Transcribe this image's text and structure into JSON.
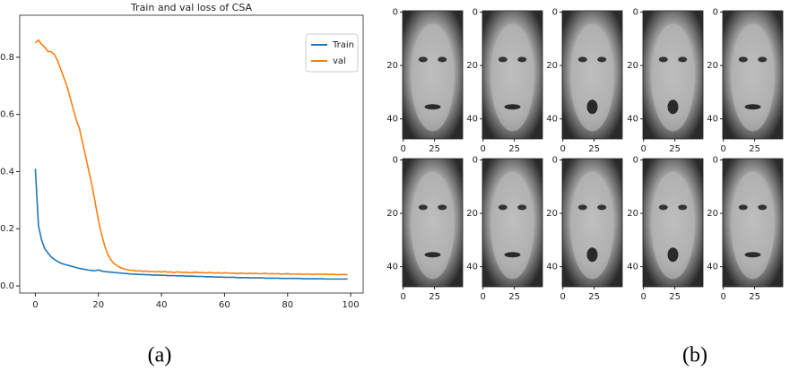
{
  "chart_data": [
    {
      "type": "line",
      "title": "Train and val loss of CSA",
      "caption": "(a)",
      "x": [
        0,
        1,
        2,
        3,
        4,
        5,
        6,
        7,
        8,
        9,
        10,
        11,
        12,
        13,
        14,
        15,
        16,
        17,
        18,
        19,
        20,
        21,
        22,
        23,
        24,
        25,
        26,
        27,
        28,
        29,
        30,
        31,
        32,
        33,
        34,
        35,
        36,
        37,
        38,
        39,
        40,
        41,
        42,
        43,
        44,
        45,
        46,
        47,
        48,
        49,
        50,
        51,
        52,
        53,
        54,
        55,
        56,
        57,
        58,
        59,
        60,
        61,
        62,
        63,
        64,
        65,
        66,
        67,
        68,
        69,
        70,
        71,
        72,
        73,
        74,
        75,
        76,
        77,
        78,
        79,
        80,
        81,
        82,
        83,
        84,
        85,
        86,
        87,
        88,
        89,
        90,
        91,
        92,
        93,
        94,
        95,
        96,
        97,
        98,
        99
      ],
      "series": [
        {
          "name": "Train",
          "color": "#1f77b4",
          "values": [
            0.41,
            0.21,
            0.16,
            0.13,
            0.115,
            0.102,
            0.093,
            0.086,
            0.08,
            0.076,
            0.073,
            0.07,
            0.067,
            0.064,
            0.061,
            0.059,
            0.057,
            0.055,
            0.054,
            0.053,
            0.056,
            0.052,
            0.05,
            0.049,
            0.048,
            0.047,
            0.046,
            0.045,
            0.044,
            0.043,
            0.042,
            0.041,
            0.041,
            0.04,
            0.04,
            0.039,
            0.039,
            0.038,
            0.038,
            0.038,
            0.037,
            0.037,
            0.036,
            0.036,
            0.036,
            0.035,
            0.035,
            0.035,
            0.034,
            0.034,
            0.034,
            0.033,
            0.033,
            0.033,
            0.032,
            0.032,
            0.032,
            0.031,
            0.031,
            0.031,
            0.03,
            0.03,
            0.03,
            0.03,
            0.029,
            0.029,
            0.029,
            0.029,
            0.028,
            0.028,
            0.028,
            0.028,
            0.028,
            0.027,
            0.027,
            0.027,
            0.027,
            0.027,
            0.026,
            0.026,
            0.026,
            0.026,
            0.026,
            0.026,
            0.026,
            0.025,
            0.025,
            0.025,
            0.025,
            0.025,
            0.025,
            0.025,
            0.024,
            0.024,
            0.024,
            0.024,
            0.024,
            0.024,
            0.024,
            0.024
          ]
        },
        {
          "name": "val",
          "color": "#ff7f0e",
          "values": [
            0.85,
            0.86,
            0.845,
            0.835,
            0.82,
            0.82,
            0.81,
            0.79,
            0.76,
            0.73,
            0.7,
            0.66,
            0.62,
            0.58,
            0.55,
            0.5,
            0.45,
            0.4,
            0.35,
            0.29,
            0.23,
            0.18,
            0.14,
            0.11,
            0.09,
            0.078,
            0.07,
            0.064,
            0.06,
            0.057,
            0.055,
            0.054,
            0.052,
            0.053,
            0.051,
            0.052,
            0.05,
            0.051,
            0.049,
            0.05,
            0.049,
            0.05,
            0.048,
            0.049,
            0.047,
            0.049,
            0.048,
            0.047,
            0.048,
            0.046,
            0.047,
            0.048,
            0.046,
            0.047,
            0.045,
            0.047,
            0.046,
            0.045,
            0.046,
            0.044,
            0.046,
            0.045,
            0.044,
            0.045,
            0.043,
            0.045,
            0.044,
            0.043,
            0.044,
            0.043,
            0.044,
            0.042,
            0.043,
            0.044,
            0.042,
            0.043,
            0.042,
            0.043,
            0.041,
            0.042,
            0.043,
            0.041,
            0.042,
            0.041,
            0.042,
            0.04,
            0.042,
            0.041,
            0.04,
            0.041,
            0.041,
            0.04,
            0.041,
            0.04,
            0.041,
            0.04,
            0.039,
            0.04,
            0.04,
            0.039
          ]
        }
      ],
      "xlim": [
        -4.95,
        103.95
      ],
      "xticks": [
        0,
        20,
        40,
        60,
        80,
        100
      ],
      "ylim": [
        -0.025,
        0.947
      ],
      "yticks": [
        {
          "value": 0,
          "label": "0.0"
        },
        0.2,
        0.4,
        0.6,
        0.8
      ],
      "legend": "upper right"
    },
    {
      "type": "image",
      "caption": "(b)",
      "xlim": [
        -0.5,
        47.5
      ],
      "xticks": [
        0,
        25
      ],
      "ylim": [
        47.5,
        -0.5
      ],
      "yticks": [
        0,
        20,
        40
      ]
    }
  ]
}
